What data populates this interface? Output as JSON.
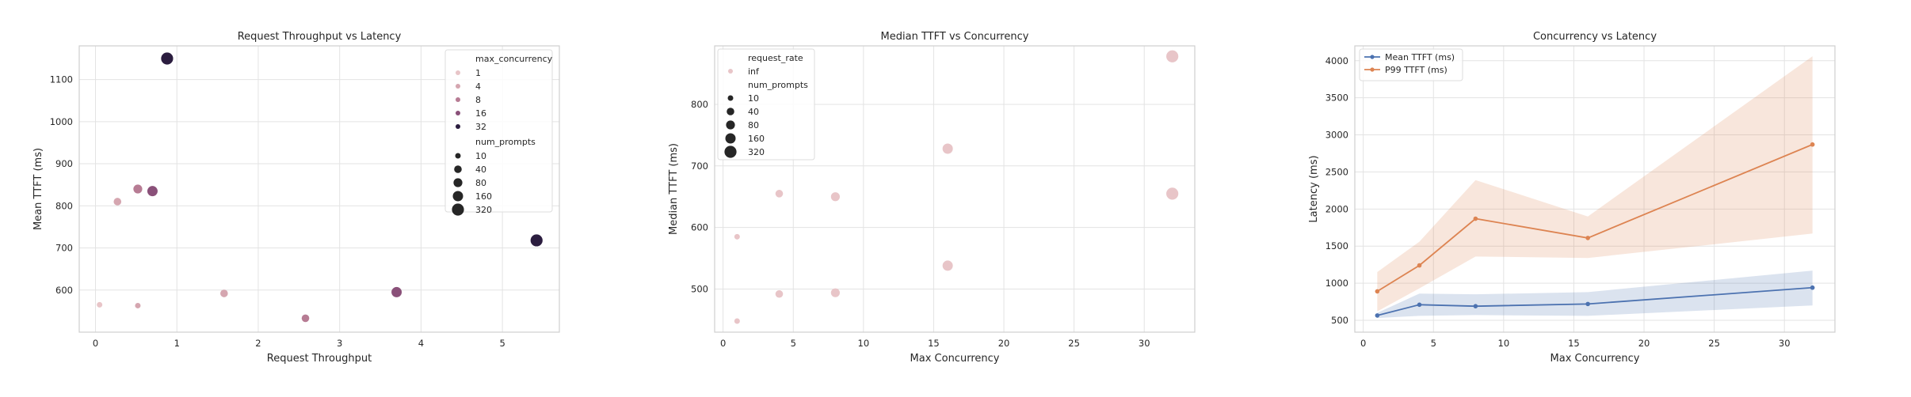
{
  "chart_data": [
    {
      "type": "scatter",
      "title": "Request Throughput vs Latency",
      "xlabel": "Request Throughput",
      "ylabel": "Mean TTFT (ms)",
      "xlim": [
        -0.2,
        5.7
      ],
      "ylim": [
        500,
        1180
      ],
      "xticks": [
        0,
        1,
        2,
        3,
        4,
        5
      ],
      "yticks": [
        600,
        700,
        800,
        900,
        1000,
        1100
      ],
      "grid": true,
      "legend_position": "top-right",
      "hue": {
        "name": "max_concurrency",
        "values": [
          1,
          4,
          8,
          16,
          32
        ]
      },
      "size": {
        "name": "num_prompts",
        "values": [
          10,
          40,
          80,
          160,
          320
        ]
      },
      "points": [
        {
          "x": 0.05,
          "y": 565,
          "max_concurrency": 1,
          "num_prompts": 10
        },
        {
          "x": 0.27,
          "y": 810,
          "max_concurrency": 4,
          "num_prompts": 40
        },
        {
          "x": 0.52,
          "y": 563,
          "max_concurrency": 4,
          "num_prompts": 10
        },
        {
          "x": 0.52,
          "y": 840,
          "max_concurrency": 8,
          "num_prompts": 80
        },
        {
          "x": 0.7,
          "y": 835,
          "max_concurrency": 16,
          "num_prompts": 160
        },
        {
          "x": 0.88,
          "y": 1150,
          "max_concurrency": 32,
          "num_prompts": 320
        },
        {
          "x": 1.58,
          "y": 592,
          "max_concurrency": 4,
          "num_prompts": 40
        },
        {
          "x": 2.58,
          "y": 533,
          "max_concurrency": 8,
          "num_prompts": 40
        },
        {
          "x": 3.7,
          "y": 595,
          "max_concurrency": 16,
          "num_prompts": 160
        },
        {
          "x": 5.42,
          "y": 718,
          "max_concurrency": 32,
          "num_prompts": 320
        }
      ]
    },
    {
      "type": "scatter",
      "title": "Median TTFT vs Concurrency",
      "xlabel": "Max Concurrency",
      "ylabel": "Median TTFT (ms)",
      "xlim": [
        -0.6,
        33.6
      ],
      "ylim": [
        430,
        895
      ],
      "xticks": [
        0,
        5,
        10,
        15,
        20,
        25,
        30
      ],
      "yticks": [
        500,
        600,
        700,
        800
      ],
      "grid": true,
      "legend_position": "top-left",
      "hue": {
        "name": "request_rate",
        "values": [
          "inf"
        ]
      },
      "size": {
        "name": "num_prompts",
        "values": [
          10,
          40,
          80,
          160,
          320
        ]
      },
      "points": [
        {
          "x": 1,
          "y": 448,
          "num_prompts": 10
        },
        {
          "x": 1,
          "y": 585,
          "num_prompts": 10
        },
        {
          "x": 4,
          "y": 492,
          "num_prompts": 40
        },
        {
          "x": 4,
          "y": 655,
          "num_prompts": 40
        },
        {
          "x": 8,
          "y": 494,
          "num_prompts": 80
        },
        {
          "x": 8,
          "y": 650,
          "num_prompts": 80
        },
        {
          "x": 16,
          "y": 538,
          "num_prompts": 160
        },
        {
          "x": 16,
          "y": 728,
          "num_prompts": 160
        },
        {
          "x": 32,
          "y": 655,
          "num_prompts": 320
        },
        {
          "x": 32,
          "y": 878,
          "num_prompts": 320
        }
      ]
    },
    {
      "type": "line",
      "title": "Concurrency vs Latency",
      "xlabel": "Max Concurrency",
      "ylabel": "Latency (ms)",
      "xlim": [
        -0.6,
        33.6
      ],
      "ylim": [
        340,
        4200
      ],
      "xticks": [
        0,
        5,
        10,
        15,
        20,
        25,
        30
      ],
      "yticks": [
        500,
        1000,
        1500,
        2000,
        2500,
        3000,
        3500,
        4000
      ],
      "grid": true,
      "legend_position": "top-left",
      "x": [
        1,
        4,
        8,
        16,
        32
      ],
      "series": [
        {
          "name": "Mean TTFT (ms)",
          "color": "#4c72b0",
          "values": [
            565,
            710,
            690,
            720,
            940
          ],
          "band_low": [
            530,
            560,
            570,
            560,
            700
          ],
          "band_high": [
            600,
            860,
            850,
            880,
            1170
          ]
        },
        {
          "name": "P99 TTFT (ms)",
          "color": "#dd8452",
          "values": [
            890,
            1240,
            1870,
            1610,
            2870
          ],
          "band_low": [
            620,
            930,
            1360,
            1340,
            1670
          ],
          "band_high": [
            1150,
            1560,
            2390,
            1900,
            4060
          ]
        }
      ]
    }
  ]
}
